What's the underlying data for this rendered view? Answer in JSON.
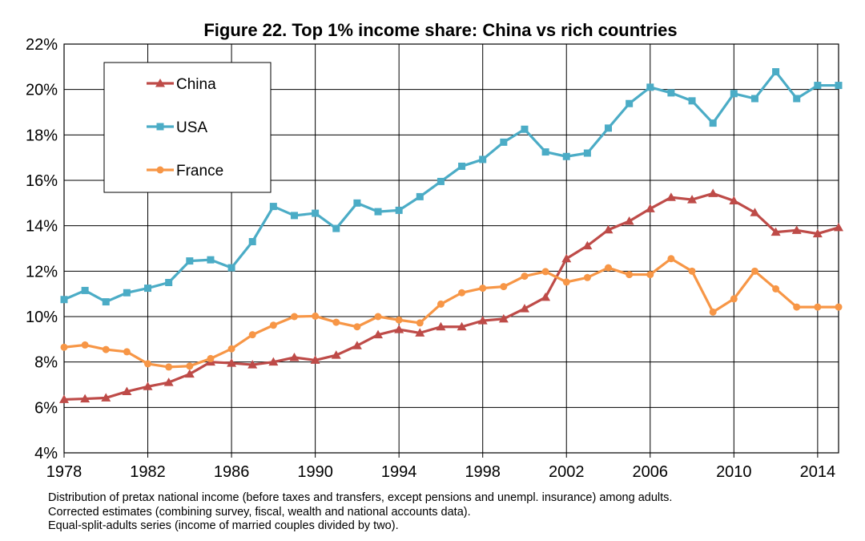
{
  "chart_data": {
    "type": "line",
    "title": "Figure 22. Top 1% income share: China vs rich countries",
    "xlabel": "",
    "ylabel": "",
    "xlim": [
      1978,
      2015
    ],
    "ylim": [
      4,
      22
    ],
    "x_tick_labels": [
      "1978",
      "1982",
      "1986",
      "1990",
      "1994",
      "1998",
      "2002",
      "2006",
      "2010",
      "2014"
    ],
    "x_ticks": [
      1978,
      1982,
      1986,
      1990,
      1994,
      1998,
      2002,
      2006,
      2010,
      2014
    ],
    "y_ticks": [
      4,
      6,
      8,
      10,
      12,
      14,
      16,
      18,
      20,
      22
    ],
    "y_tick_labels": [
      "4%",
      "6%",
      "8%",
      "10%",
      "12%",
      "14%",
      "16%",
      "18%",
      "20%",
      "22%"
    ],
    "grid": true,
    "legend_position": "top-left",
    "x": [
      1978,
      1979,
      1980,
      1981,
      1982,
      1983,
      1984,
      1985,
      1986,
      1987,
      1988,
      1989,
      1990,
      1991,
      1992,
      1993,
      1994,
      1995,
      1996,
      1997,
      1998,
      1999,
      2000,
      2001,
      2002,
      2003,
      2004,
      2005,
      2006,
      2007,
      2008,
      2009,
      2010,
      2011,
      2012,
      2013,
      2014,
      2015
    ],
    "series": [
      {
        "name": "China",
        "color": "#be4b48",
        "marker": "triangle",
        "values": [
          6.35,
          6.38,
          6.42,
          6.7,
          6.92,
          7.1,
          7.47,
          8.0,
          7.95,
          7.88,
          8.0,
          8.2,
          8.08,
          8.3,
          8.72,
          9.2,
          9.43,
          9.28,
          9.55,
          9.55,
          9.82,
          9.9,
          10.35,
          10.85,
          12.55,
          13.12,
          13.82,
          14.2,
          14.75,
          15.25,
          15.15,
          15.42,
          15.1,
          14.58,
          13.72,
          13.8,
          13.65,
          13.92
        ]
      },
      {
        "name": "USA",
        "color": "#4bacc6",
        "marker": "square",
        "values": [
          10.75,
          11.15,
          10.65,
          11.05,
          11.25,
          11.5,
          12.45,
          12.5,
          12.15,
          13.3,
          14.85,
          14.45,
          14.55,
          13.88,
          15.0,
          14.62,
          14.68,
          15.28,
          15.95,
          16.62,
          16.92,
          17.68,
          18.25,
          17.25,
          17.05,
          17.2,
          18.3,
          19.38,
          20.1,
          19.85,
          19.5,
          18.52,
          19.82,
          19.6,
          20.78,
          19.6,
          20.18,
          20.18
        ]
      },
      {
        "name": "France",
        "color": "#f79646",
        "marker": "circle",
        "values": [
          8.65,
          8.75,
          8.55,
          8.45,
          7.92,
          7.78,
          7.82,
          8.15,
          8.58,
          9.2,
          9.62,
          10.0,
          10.02,
          9.75,
          9.55,
          10.0,
          9.85,
          9.72,
          10.55,
          11.05,
          11.25,
          11.32,
          11.78,
          11.98,
          11.52,
          11.72,
          12.15,
          11.85,
          11.85,
          12.55,
          12.0,
          10.2,
          10.78,
          12.0,
          11.22,
          10.42,
          10.42,
          10.42
        ]
      }
    ],
    "footnotes": [
      "Distribution of pretax national income (before taxes and transfers, except pensions and unempl. insurance) among adults.",
      "Corrected estimates (combining survey, fiscal, wealth and national accounts data).",
      "Equal-split-adults series (income of married couples divided by two)."
    ]
  }
}
